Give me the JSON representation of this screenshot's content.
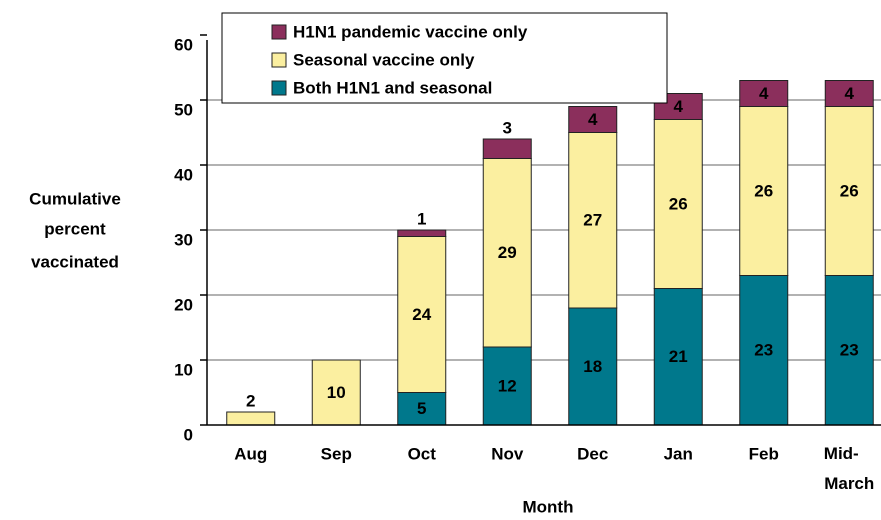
{
  "chart_data": {
    "type": "stacked_bar",
    "x_label": "Month",
    "y_label": [
      "Cumulative",
      "percent",
      "vaccinated"
    ],
    "categories": [
      "Aug",
      "Sep",
      "Oct",
      "Nov",
      "Dec",
      "Jan",
      "Feb",
      "Mid-March"
    ],
    "series": [
      {
        "name": "Both H1N1 and seasonal",
        "color": "#00788c",
        "values": [
          null,
          null,
          5,
          12,
          18,
          21,
          23,
          23
        ]
      },
      {
        "name": "Seasonal vaccine only",
        "color": "#fbefa0",
        "values": [
          2,
          10,
          24,
          29,
          27,
          26,
          26,
          26
        ]
      },
      {
        "name": "H1N1 pandemic vaccine only",
        "color": "#8b2f5c",
        "values": [
          null,
          null,
          1,
          3,
          4,
          4,
          4,
          4
        ]
      }
    ],
    "label_colors": [
      "#ffffff",
      "#000000",
      "#ffffff"
    ],
    "ylim": [
      0,
      60
    ],
    "yticks": [
      0,
      10,
      20,
      30,
      40,
      50,
      60
    ],
    "grid": true
  }
}
